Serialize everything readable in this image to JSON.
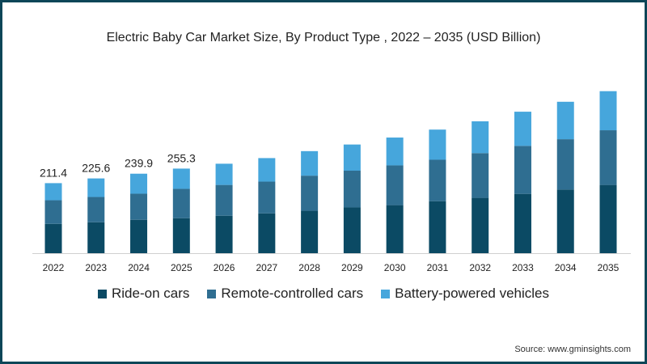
{
  "chart_data": {
    "type": "bar",
    "stacked": true,
    "title": "Electric Baby Car Market Size, By Product Type , 2022 – 2035 (USD Billion)",
    "xlabel": "",
    "ylabel": "",
    "ylim": [
      0,
      520
    ],
    "grid": false,
    "legend_position": "bottom",
    "categories": [
      "2022",
      "2023",
      "2024",
      "2025",
      "2026",
      "2027",
      "2028",
      "2029",
      "2030",
      "2031",
      "2032",
      "2033",
      "2034",
      "2035"
    ],
    "series": [
      {
        "name": "Ride-on cars",
        "color": "#0b4a64",
        "values": [
          88.5,
          93.4,
          100.8,
          105.7,
          113,
          120,
          128,
          138,
          145,
          157,
          167,
          179,
          192,
          206
        ]
      },
      {
        "name": "Remote-controlled cars",
        "color": "#2f6e91",
        "values": [
          71.3,
          76.2,
          78.7,
          88.5,
          93,
          96,
          106,
          111,
          120,
          125,
          135,
          145,
          152,
          165
        ]
      },
      {
        "name": "Battery-powered vehicles",
        "color": "#46a6dc",
        "values": [
          51.6,
          56.0,
          60.4,
          61.1,
          64,
          71,
          74,
          79,
          84,
          91,
          96,
          103,
          113,
          118
        ]
      }
    ],
    "total_labels": [
      "211.4",
      "225.6",
      "239.9",
      "255.3"
    ]
  },
  "source": "Source: www.gminsights.com"
}
